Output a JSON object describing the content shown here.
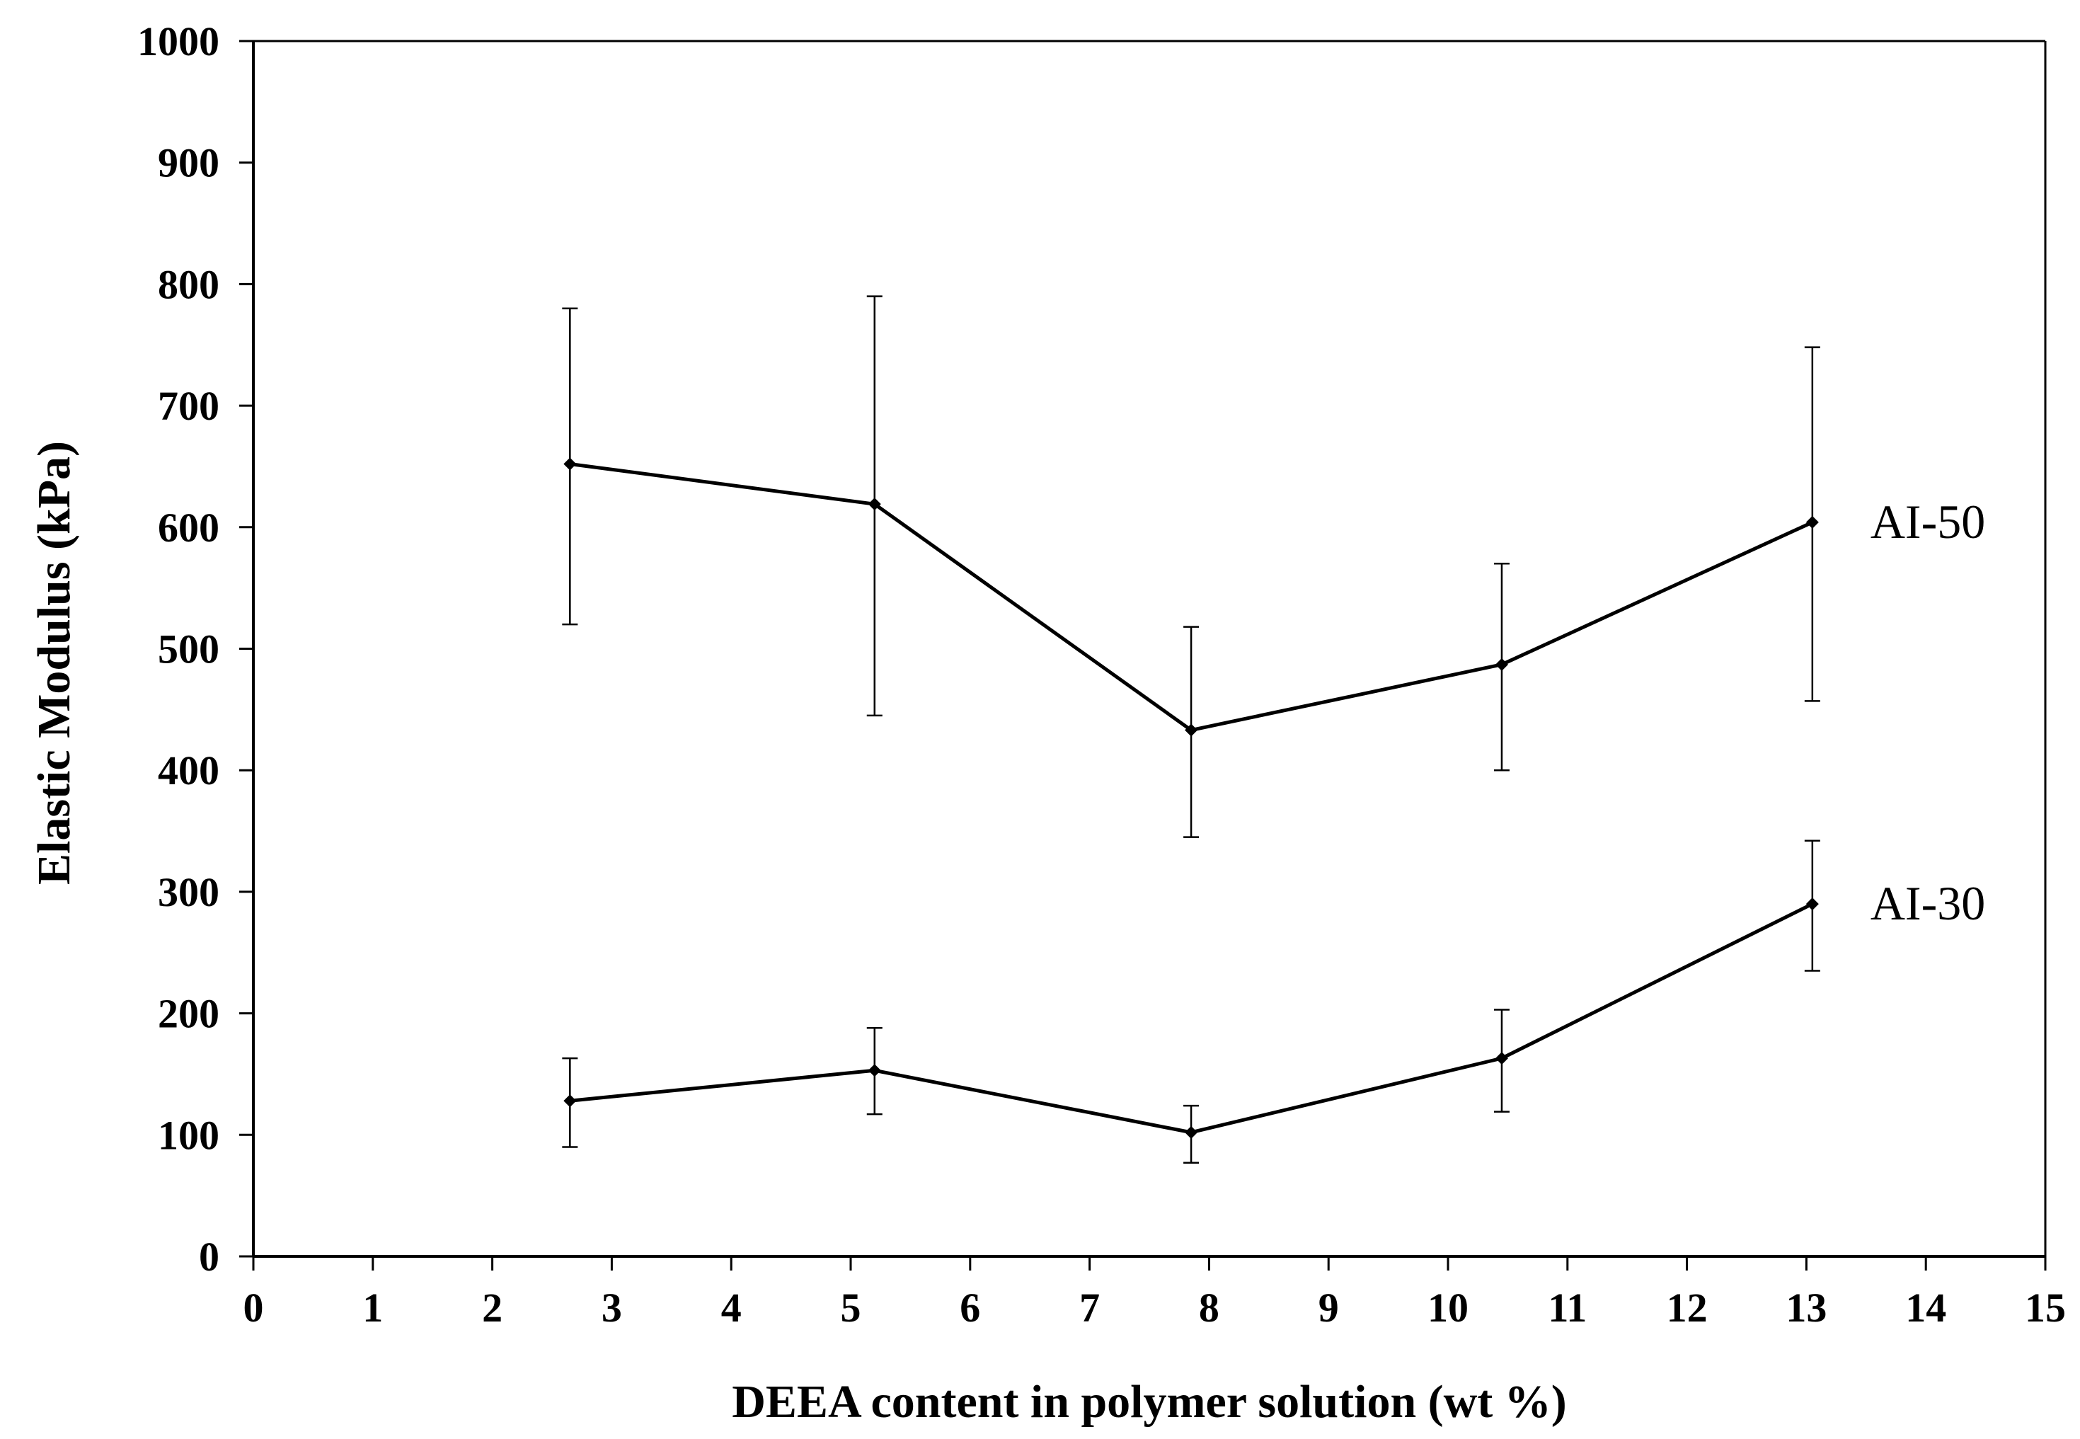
{
  "chart_data": {
    "type": "line",
    "xlabel": "DEEA content in polymer solution (wt %)",
    "ylabel": "Elastic Modulus (kPa)",
    "xlim": [
      0,
      15
    ],
    "ylim": [
      0,
      1000
    ],
    "x_ticks": [
      "0",
      "1",
      "2",
      "3",
      "4",
      "5",
      "6",
      "7",
      "8",
      "9",
      "10",
      "11",
      "12",
      "13",
      "14",
      "15"
    ],
    "y_ticks": [
      "0",
      "100",
      "200",
      "300",
      "400",
      "500",
      "600",
      "700",
      "800",
      "900",
      "1000"
    ],
    "grid": false,
    "legend": "none",
    "series": [
      {
        "name": "AI-50",
        "x": [
          2.65,
          5.2,
          7.85,
          10.45,
          13.05
        ],
        "y": [
          652,
          619,
          433,
          487,
          604
        ],
        "err_low": [
          520,
          445,
          345,
          400,
          457
        ],
        "err_high": [
          780,
          790,
          518,
          570,
          748
        ]
      },
      {
        "name": "AI-30",
        "x": [
          2.65,
          5.2,
          7.85,
          10.45,
          13.05
        ],
        "y": [
          128,
          153,
          102,
          163,
          290
        ],
        "err_low": [
          90,
          117,
          77,
          119,
          235
        ],
        "err_high": [
          163,
          188,
          124,
          203,
          342
        ]
      }
    ]
  }
}
